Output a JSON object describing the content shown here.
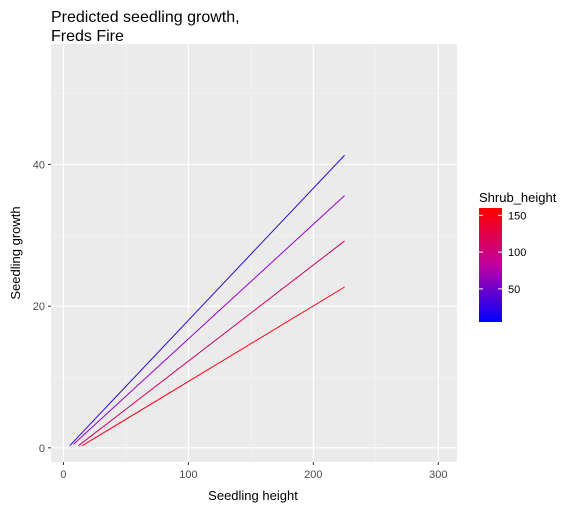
{
  "chart_data": {
    "type": "line",
    "title": [
      "Predicted seedling growth,",
      "Freds Fire"
    ],
    "xlabel": "Seedling height",
    "ylabel": "Seedling growth",
    "xlim": [
      -10,
      315
    ],
    "ylim": [
      -2,
      57
    ],
    "x_ticks": [
      0,
      100,
      200,
      300
    ],
    "y_ticks": [
      0,
      20,
      40
    ],
    "grid": true,
    "legend": {
      "title": "Shrub_height",
      "position": "right",
      "min": 5,
      "max": 160,
      "ticks": [
        50,
        100,
        150
      ],
      "low_color": "#0000ff",
      "high_color": "#ff0000"
    },
    "series": [
      {
        "shrub_height": 5,
        "color": "#2a0ad9",
        "x": [
          5,
          225
        ],
        "y": [
          0.3,
          41.3
        ]
      },
      {
        "shrub_height": 40,
        "color": "#9a00d6",
        "x": [
          8,
          225
        ],
        "y": [
          0.5,
          35.6
        ]
      },
      {
        "shrub_height": 100,
        "color": "#d6005e",
        "x": [
          12,
          225
        ],
        "y": [
          0.3,
          29.2
        ]
      },
      {
        "shrub_height": 150,
        "color": "#ff0010",
        "x": [
          15,
          225
        ],
        "y": [
          0.3,
          22.7
        ]
      }
    ]
  }
}
